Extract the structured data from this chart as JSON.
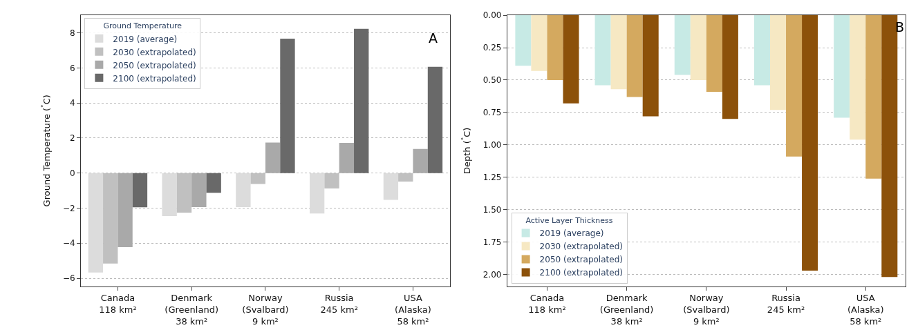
{
  "chart_data": [
    {
      "type": "bar",
      "ylabel": "Ground Temperature ($^{°}$C)",
      "legend_title": "Ground Temperature",
      "legend": "top left",
      "grid": "y",
      "categories": [
        "Canada\n118 km²",
        "Denmark\n(Greenland)\n38 km²",
        "Norway\n(Svalbard)\n9 km²",
        "Russia\n245 km²",
        "USA\n(Alaska)\n58 km²"
      ],
      "series": [
        {
          "name": "2019 (average)",
          "color": "#dcdcdc",
          "values": [
            -5.67,
            -2.45,
            -1.94,
            -2.31,
            -1.53
          ]
        },
        {
          "name": "2030 (extrapolated)",
          "color": "#c0c0c0",
          "values": [
            -5.16,
            -2.26,
            -0.62,
            -0.88,
            -0.48
          ]
        },
        {
          "name": "2050 (extrapolated)",
          "color": "#a9a9a9",
          "values": [
            -4.23,
            -1.94,
            1.74,
            1.72,
            1.38
          ]
        },
        {
          "name": "2100 (extrapolated)",
          "color": "#696969",
          "values": [
            -1.95,
            -1.12,
            7.67,
            8.23,
            6.06
          ]
        }
      ],
      "ylim": [
        -6.45,
        9.0
      ],
      "yticks": [
        {
          "value": -6,
          "label": "−6"
        },
        {
          "value": -4,
          "label": "−4"
        },
        {
          "value": -2,
          "label": "−2"
        },
        0,
        2,
        4,
        6,
        8
      ],
      "annotations": [
        "A"
      ]
    },
    {
      "type": "bar",
      "ylabel": "Depth ($^{°}$C)",
      "legend_title": "Active Layer Thickness",
      "legend": "bottom left",
      "grid": "y",
      "categories": [
        "Canada\n118 km²",
        "Denmark\n(Greenland)\n38 km²",
        "Norway\n(Svalbard)\n9 km²",
        "Russia\n245 km²",
        "USA\n(Alaska)\n58 km²"
      ],
      "series": [
        {
          "name": "2019 (average)",
          "color": "#c7eae5",
          "values": [
            0.39,
            0.54,
            0.46,
            0.54,
            0.79
          ]
        },
        {
          "name": "2030 (extrapolated)",
          "color": "#f6e8c3",
          "values": [
            0.43,
            0.57,
            0.5,
            0.73,
            0.96
          ]
        },
        {
          "name": "2050 (extrapolated)",
          "color": "#d4a95f",
          "values": [
            0.5,
            0.63,
            0.59,
            1.09,
            1.26
          ]
        },
        {
          "name": "2100 (extrapolated)",
          "color": "#8c510a",
          "values": [
            0.68,
            0.78,
            0.8,
            1.97,
            2.02
          ]
        }
      ],
      "ylim": [
        2.09,
        0
      ],
      "yticks": [
        {
          "value": 0,
          "label": "0.00"
        },
        {
          "value": 0.25,
          "label": "0.25"
        },
        {
          "value": 0.5,
          "label": "0.50"
        },
        {
          "value": 0.75,
          "label": "0.75"
        },
        {
          "value": 1,
          "label": "1.00"
        },
        {
          "value": 1.25,
          "label": "1.25"
        },
        {
          "value": 1.5,
          "label": "1.50"
        },
        {
          "value": 1.75,
          "label": "1.75"
        },
        {
          "value": 2,
          "label": "2.00"
        }
      ],
      "annotations": [
        "B"
      ]
    }
  ]
}
